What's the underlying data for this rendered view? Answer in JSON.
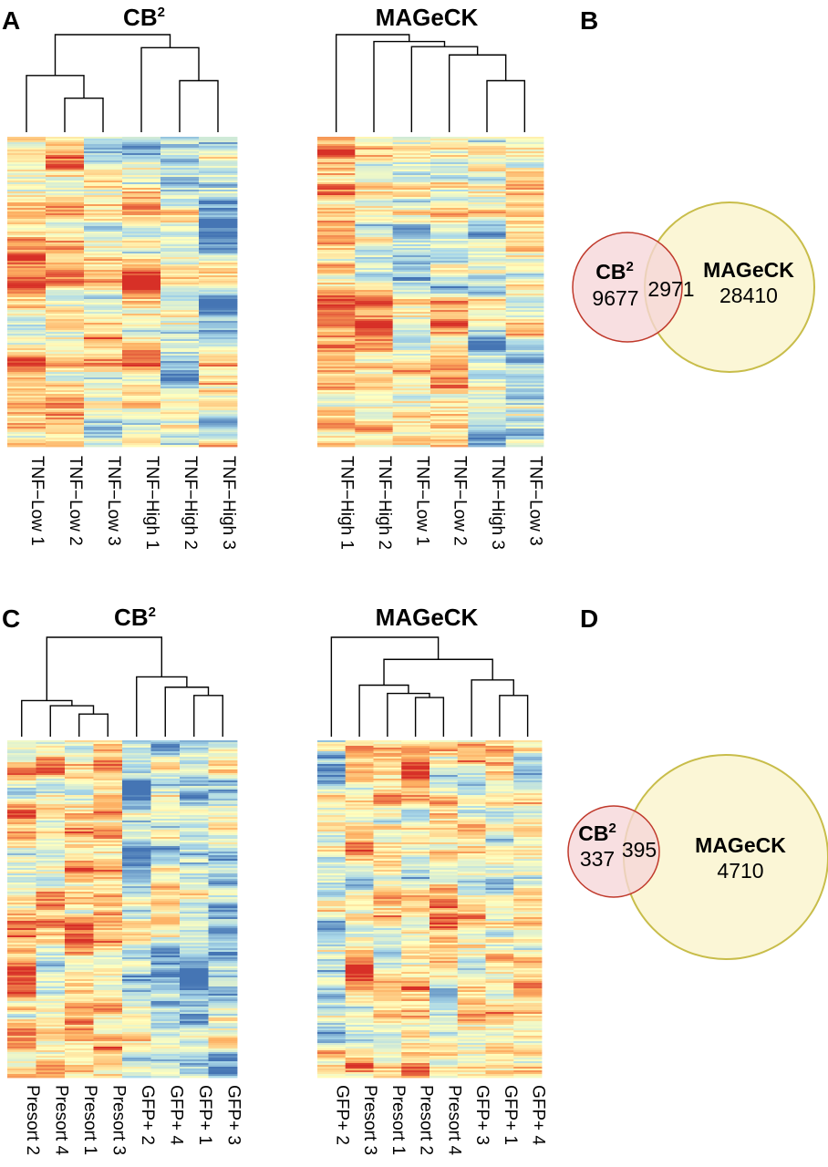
{
  "panels": {
    "A": "A",
    "B": "B",
    "C": "C",
    "D": "D"
  },
  "colors": {
    "high": "#d73027",
    "mid_high": "#fdae61",
    "mid": "#ffffbf",
    "mid_low": "#abd9e9",
    "low": "#4575b4",
    "venn_cb2_fill": "#f6d6d9",
    "venn_cb2_stroke": "#c0392b",
    "venn_mageck_fill": "#fbf6d6",
    "venn_mageck_stroke": "#c8bd4a",
    "dendro": "#000000"
  },
  "chart_data": [
    {
      "id": "A-CB2",
      "type": "heatmap",
      "title": "CB",
      "title_sup": "2",
      "columns": [
        "TNF−Low 1",
        "TNF−Low 2",
        "TNF−Low 3",
        "TNF−High 1",
        "TNF−High 2",
        "TNF−High 3"
      ],
      "col_bias": [
        0.35,
        0.25,
        0.05,
        0.0,
        -0.25,
        -0.3
      ],
      "dendrogram": {
        "left": [
          [
            1,
            2
          ],
          [
            0,
            [
              1,
              2
            ]
          ]
        ],
        "right": [
          [
            4,
            5
          ],
          [
            3,
            [
              4,
              5
            ]
          ]
        ],
        "root": [
          [
            0,
            [
              1,
              2
            ]
          ],
          [
            3,
            [
              4,
              5
            ]
          ]
        ]
      }
    },
    {
      "id": "A-MAGeCK",
      "type": "heatmap",
      "title": "MAGeCK",
      "columns": [
        "TNF−High 1",
        "TNF−High 2",
        "TNF−Low 1",
        "TNF−Low 2",
        "TNF−High 3",
        "TNF−Low 3"
      ],
      "col_bias": [
        0.55,
        0.1,
        -0.15,
        0.05,
        -0.1,
        0.0
      ],
      "dendrogram": {
        "order": "ladder"
      }
    },
    {
      "id": "C-CB2",
      "type": "heatmap",
      "title": "CB",
      "title_sup": "2",
      "columns": [
        "Presort 2",
        "Presort 4",
        "Presort 1",
        "Presort 3",
        "GFP+ 2",
        "GFP+ 4",
        "GFP+ 1",
        "GFP+ 3"
      ],
      "col_bias": [
        0.3,
        0.35,
        0.35,
        0.4,
        -0.35,
        -0.2,
        -0.3,
        -0.2
      ],
      "dendrogram": {
        "groups": [
          [
            0,
            1,
            2,
            3
          ],
          [
            4,
            5,
            6,
            7
          ]
        ]
      }
    },
    {
      "id": "C-MAGeCK",
      "type": "heatmap",
      "title": "MAGeCK",
      "columns": [
        "GFP+ 2",
        "Presort 3",
        "Presort 1",
        "Presort 2",
        "Presort 4",
        "GFP+ 3",
        "GFP+ 1",
        "GFP+ 4"
      ],
      "col_bias": [
        -0.3,
        0.05,
        0.1,
        0.1,
        0.1,
        0.05,
        0.2,
        0.15
      ],
      "dendrogram": {
        "outlier": 0
      }
    },
    {
      "id": "B-venn",
      "type": "venn",
      "sets": [
        {
          "name": "CB",
          "sup": "2",
          "only": 9677
        },
        {
          "name": "MAGeCK",
          "only": 28410
        }
      ],
      "overlap": 2971
    },
    {
      "id": "D-venn",
      "type": "venn",
      "sets": [
        {
          "name": "CB",
          "sup": "2",
          "only": 337
        },
        {
          "name": "MAGeCK",
          "only": 4710
        }
      ],
      "overlap": 395
    }
  ]
}
